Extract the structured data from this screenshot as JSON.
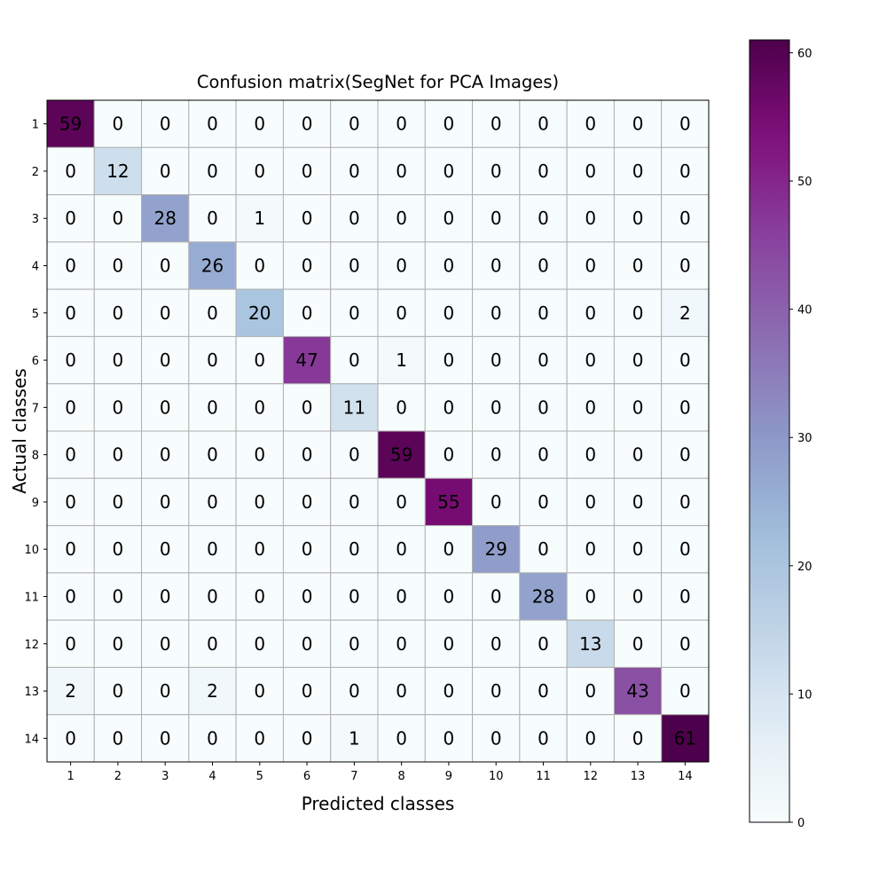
{
  "chart_data": {
    "type": "heatmap",
    "title": "Confusion matrix(SegNet for PCA Images)",
    "xlabel": "Predicted classes",
    "ylabel": "Actual classes",
    "x_categories": [
      "1",
      "2",
      "3",
      "4",
      "5",
      "6",
      "7",
      "8",
      "9",
      "10",
      "11",
      "12",
      "13",
      "14"
    ],
    "y_categories": [
      "1",
      "2",
      "3",
      "4",
      "5",
      "6",
      "7",
      "8",
      "9",
      "10",
      "11",
      "12",
      "13",
      "14"
    ],
    "values": [
      [
        59,
        0,
        0,
        0,
        0,
        0,
        0,
        0,
        0,
        0,
        0,
        0,
        0,
        0
      ],
      [
        0,
        12,
        0,
        0,
        0,
        0,
        0,
        0,
        0,
        0,
        0,
        0,
        0,
        0
      ],
      [
        0,
        0,
        28,
        0,
        1,
        0,
        0,
        0,
        0,
        0,
        0,
        0,
        0,
        0
      ],
      [
        0,
        0,
        0,
        26,
        0,
        0,
        0,
        0,
        0,
        0,
        0,
        0,
        0,
        0
      ],
      [
        0,
        0,
        0,
        0,
        20,
        0,
        0,
        0,
        0,
        0,
        0,
        0,
        0,
        2
      ],
      [
        0,
        0,
        0,
        0,
        0,
        47,
        0,
        1,
        0,
        0,
        0,
        0,
        0,
        0
      ],
      [
        0,
        0,
        0,
        0,
        0,
        0,
        11,
        0,
        0,
        0,
        0,
        0,
        0,
        0
      ],
      [
        0,
        0,
        0,
        0,
        0,
        0,
        0,
        59,
        0,
        0,
        0,
        0,
        0,
        0
      ],
      [
        0,
        0,
        0,
        0,
        0,
        0,
        0,
        0,
        55,
        0,
        0,
        0,
        0,
        0
      ],
      [
        0,
        0,
        0,
        0,
        0,
        0,
        0,
        0,
        0,
        29,
        0,
        0,
        0,
        0
      ],
      [
        0,
        0,
        0,
        0,
        0,
        0,
        0,
        0,
        0,
        0,
        28,
        0,
        0,
        0
      ],
      [
        0,
        0,
        0,
        0,
        0,
        0,
        0,
        0,
        0,
        0,
        0,
        13,
        0,
        0
      ],
      [
        2,
        0,
        0,
        2,
        0,
        0,
        0,
        0,
        0,
        0,
        0,
        0,
        43,
        0
      ],
      [
        0,
        0,
        0,
        0,
        0,
        0,
        1,
        0,
        0,
        0,
        0,
        0,
        0,
        61
      ]
    ],
    "colorbar": {
      "colormap": "BuPu",
      "range": [
        0,
        61
      ],
      "ticks": [
        "0",
        "10",
        "20",
        "30",
        "40",
        "50",
        "60"
      ]
    },
    "grid": true,
    "legend": "colorbar-right"
  }
}
